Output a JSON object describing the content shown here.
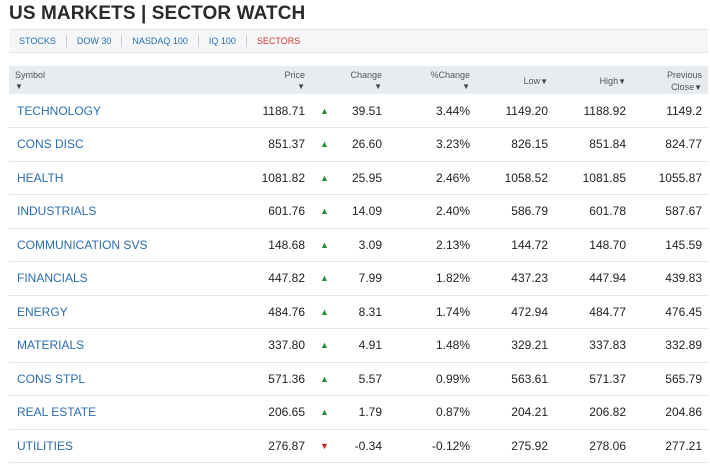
{
  "title": "US MARKETS | SECTOR WATCH",
  "tabs": [
    {
      "label": "STOCKS",
      "active": false
    },
    {
      "label": "DOW 30",
      "active": false
    },
    {
      "label": "NASDAQ 100",
      "active": false
    },
    {
      "label": "IQ 100",
      "active": false
    },
    {
      "label": "SECTORS",
      "active": true
    }
  ],
  "colors": {
    "link": "#2a6db0",
    "active_tab": "#d6372e",
    "up": "#2e8b3a",
    "down": "#cc2222"
  },
  "columns": {
    "symbol": "Symbol",
    "price": "Price",
    "change": "Change",
    "pct_change": "%Change",
    "low": "Low",
    "high": "High",
    "prev_line1": "Previous",
    "prev_line2": "Close",
    "sort_glyph": "▼"
  },
  "rows": [
    {
      "symbol": "TECHNOLOGY",
      "price": "1188.71",
      "dir": "up",
      "change": "39.51",
      "pct": "3.44%",
      "low": "1149.20",
      "high": "1188.92",
      "prev": "1149.2"
    },
    {
      "symbol": "CONS DISC",
      "price": "851.37",
      "dir": "up",
      "change": "26.60",
      "pct": "3.23%",
      "low": "826.15",
      "high": "851.84",
      "prev": "824.77"
    },
    {
      "symbol": "HEALTH",
      "price": "1081.82",
      "dir": "up",
      "change": "25.95",
      "pct": "2.46%",
      "low": "1058.52",
      "high": "1081.85",
      "prev": "1055.87"
    },
    {
      "symbol": "INDUSTRIALS",
      "price": "601.76",
      "dir": "up",
      "change": "14.09",
      "pct": "2.40%",
      "low": "586.79",
      "high": "601.78",
      "prev": "587.67"
    },
    {
      "symbol": "COMMUNICATION SVS",
      "price": "148.68",
      "dir": "up",
      "change": "3.09",
      "pct": "2.13%",
      "low": "144.72",
      "high": "148.70",
      "prev": "145.59"
    },
    {
      "symbol": "FINANCIALS",
      "price": "447.82",
      "dir": "up",
      "change": "7.99",
      "pct": "1.82%",
      "low": "437.23",
      "high": "447.94",
      "prev": "439.83"
    },
    {
      "symbol": "ENERGY",
      "price": "484.76",
      "dir": "up",
      "change": "8.31",
      "pct": "1.74%",
      "low": "472.94",
      "high": "484.77",
      "prev": "476.45"
    },
    {
      "symbol": "MATERIALS",
      "price": "337.80",
      "dir": "up",
      "change": "4.91",
      "pct": "1.48%",
      "low": "329.21",
      "high": "337.83",
      "prev": "332.89"
    },
    {
      "symbol": "CONS STPL",
      "price": "571.36",
      "dir": "up",
      "change": "5.57",
      "pct": "0.99%",
      "low": "563.61",
      "high": "571.37",
      "prev": "565.79"
    },
    {
      "symbol": "REAL ESTATE",
      "price": "206.65",
      "dir": "up",
      "change": "1.79",
      "pct": "0.87%",
      "low": "204.21",
      "high": "206.82",
      "prev": "204.86"
    },
    {
      "symbol": "UTILITIES",
      "price": "276.87",
      "dir": "down",
      "change": "-0.34",
      "pct": "-0.12%",
      "low": "275.92",
      "high": "278.06",
      "prev": "277.21"
    }
  ]
}
